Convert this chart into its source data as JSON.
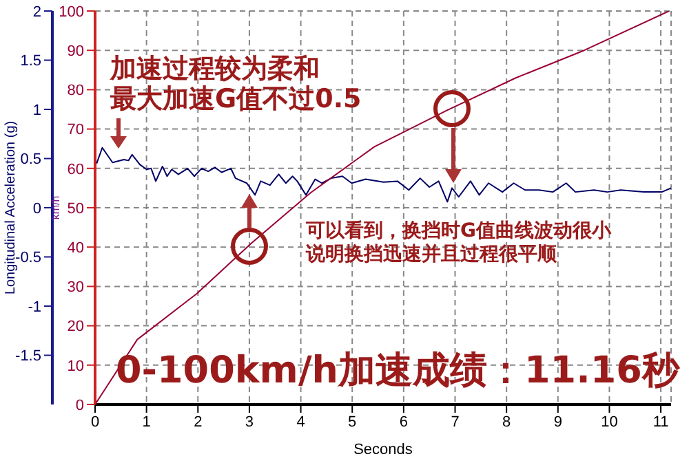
{
  "chart_data": {
    "type": "line",
    "xlabel": "Seconds",
    "ylabel": "Longitudinal Acceleration (g)",
    "y2label": "km/h",
    "xlim": [
      0,
      11.2
    ],
    "xticks": [
      0,
      1,
      2,
      3,
      4,
      5,
      6,
      7,
      8,
      9,
      10,
      11
    ],
    "ylim": [
      -2,
      2
    ],
    "yticks": [
      -1.5,
      -1,
      -0.5,
      0,
      0.5,
      1,
      1.5,
      2
    ],
    "y2lim": [
      0,
      100
    ],
    "y2ticks": [
      0,
      10,
      20,
      30,
      40,
      50,
      60,
      70,
      80,
      90,
      100
    ],
    "grid": true,
    "line_style": "solid",
    "marker": "none",
    "series": [
      {
        "color": "#000066",
        "x": [
          0.03,
          0.14,
          0.34,
          0.56,
          0.65,
          0.72,
          0.87,
          1.0,
          1.09,
          1.18,
          1.31,
          1.4,
          1.49,
          1.62,
          1.8,
          1.93,
          2.07,
          2.2,
          2.33,
          2.46,
          2.64,
          2.73,
          2.95,
          3.11,
          3.22,
          3.4,
          3.57,
          3.71,
          3.84,
          3.93,
          4.1,
          4.28,
          4.41,
          4.59,
          4.81,
          4.99,
          5.26,
          5.61,
          5.88,
          6.1,
          6.32,
          6.5,
          6.68,
          6.85,
          6.94,
          7.07,
          7.3,
          7.47,
          7.65,
          7.92,
          8.14,
          8.36,
          8.63,
          8.9,
          9.16,
          9.34,
          9.7,
          9.96,
          10.22,
          10.67,
          11.02,
          11.2
        ],
        "values": [
          0.45,
          0.61,
          0.46,
          0.49,
          0.48,
          0.54,
          0.44,
          0.39,
          0.4,
          0.27,
          0.42,
          0.32,
          0.39,
          0.34,
          0.4,
          0.32,
          0.4,
          0.37,
          0.41,
          0.36,
          0.4,
          0.3,
          0.25,
          0.13,
          0.27,
          0.23,
          0.34,
          0.25,
          0.32,
          0.27,
          0.13,
          0.29,
          0.25,
          0.3,
          0.32,
          0.25,
          0.29,
          0.26,
          0.27,
          0.18,
          0.3,
          0.21,
          0.27,
          0.06,
          0.2,
          0.11,
          0.27,
          0.13,
          0.25,
          0.16,
          0.25,
          0.18,
          0.18,
          0.16,
          0.25,
          0.16,
          0.18,
          0.16,
          0.18,
          0.16,
          0.16,
          0.2
        ]
      },
      {
        "color": "#990033",
        "axis": "y2",
        "x": [
          0,
          0.82,
          1.98,
          3.04,
          4.19,
          5.43,
          6.85,
          8.18,
          9.51,
          11.16
        ],
        "values": [
          0,
          16.5,
          28.2,
          41,
          53.8,
          65.5,
          74.8,
          83,
          90,
          100
        ]
      }
    ],
    "annotations": [
      "加速过程较为柔和",
      "最大加速G值不过0.5",
      "可以看到，换挡时G值曲线波动很小",
      "说明换挡迅速并且过程很平顺",
      "0-100km/h加速成绩：11.16秒"
    ]
  }
}
